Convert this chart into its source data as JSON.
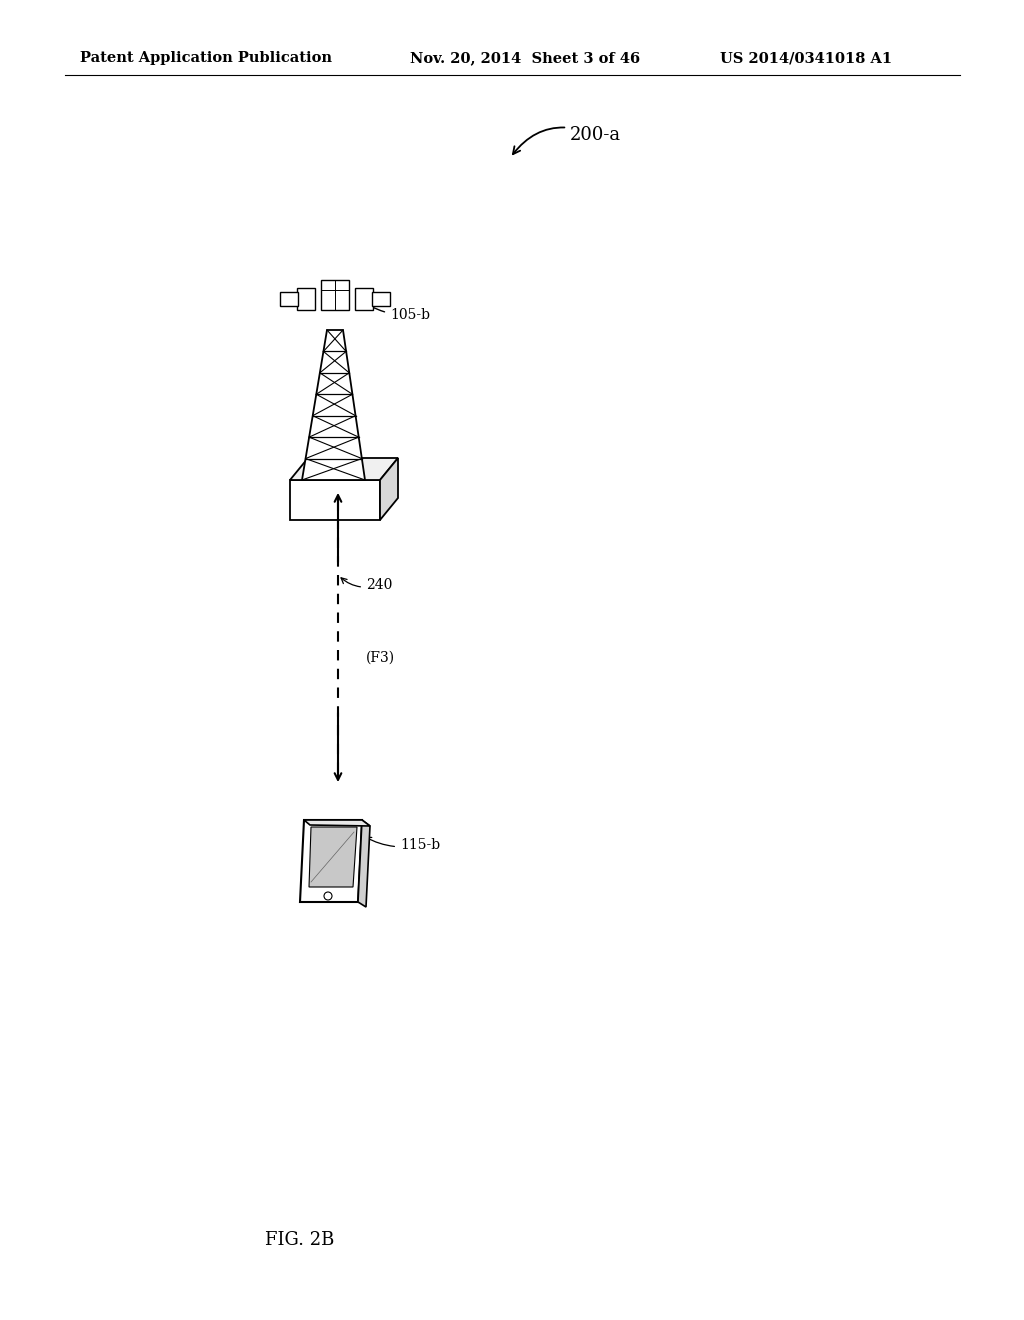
{
  "background_color": "#ffffff",
  "header_left": "Patent Application Publication",
  "header_center": "Nov. 20, 2014  Sheet 3 of 46",
  "header_right": "US 2014/0341018 A1",
  "header_fontsize": 10.5,
  "diagram_label": "200-a",
  "tower_label": "105-b",
  "device_label": "115-b",
  "arrow_label": "240",
  "arrow_label2": "(F3)",
  "fig_label": "FIG. 2B"
}
